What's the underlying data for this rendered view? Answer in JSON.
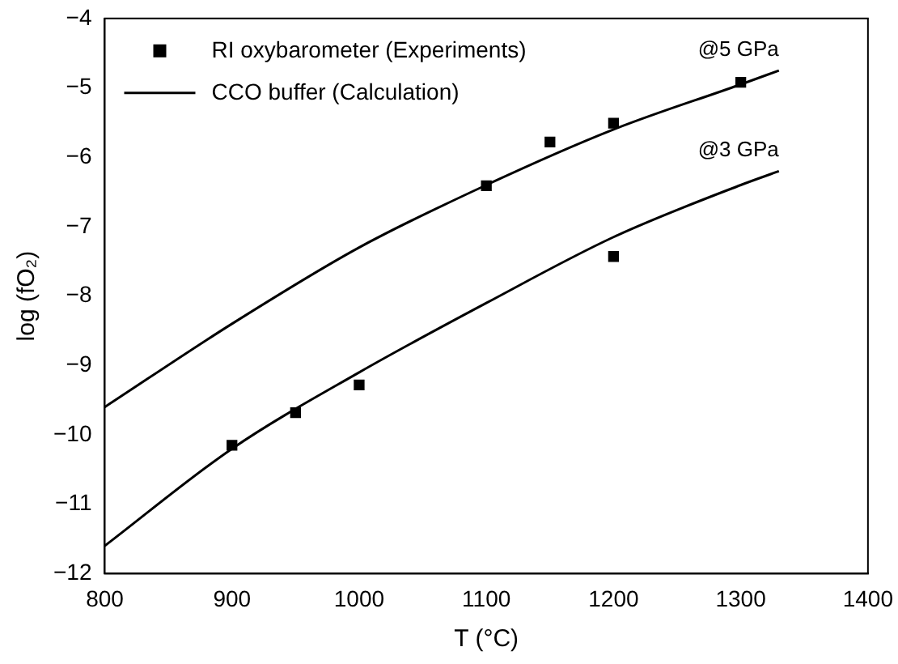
{
  "chart_data": {
    "type": "scatter",
    "xlabel": "T (°C)",
    "ylabel": "log (fO₂)",
    "xlim": [
      800,
      1400
    ],
    "xticks": [
      800,
      900,
      1000,
      1100,
      1200,
      1300,
      1400
    ],
    "ylim": [
      -12,
      -4
    ],
    "yticks": [
      {
        "value": -12,
        "label": "−12"
      },
      {
        "value": -11,
        "label": "−11"
      },
      {
        "value": -10,
        "label": "−10"
      },
      {
        "value": -9,
        "label": "−9"
      },
      {
        "value": -8,
        "label": "−8"
      },
      {
        "value": -7,
        "label": "−7"
      },
      {
        "value": -6,
        "label": "−6"
      },
      {
        "value": -5,
        "label": "−5"
      },
      {
        "value": -4,
        "label": "−4"
      }
    ],
    "grid": false,
    "legend": "top left",
    "series": [
      {
        "name": "RI oxybarometer (Experiments)",
        "marker": "square",
        "color": "#000000",
        "x": [
          900,
          950,
          1000,
          1100,
          1150,
          1200,
          1200,
          1300
        ],
        "values": [
          -10.15,
          -9.68,
          -9.28,
          -6.41,
          -5.78,
          -5.51,
          -7.43,
          -4.92
        ]
      },
      {
        "name": "CCO buffer (Calculation)",
        "type": "line",
        "marker": "none",
        "color": "#000000",
        "x": [
          800,
          900,
          1000,
          1100,
          1200,
          1300,
          1330
        ],
        "values": [
          -9.6,
          -8.4,
          -7.3,
          -6.4,
          -5.6,
          -4.95,
          -4.75
        ]
      },
      {
        "type": "line",
        "marker": "none",
        "color": "#000000",
        "x": [
          800,
          900,
          1000,
          1100,
          1200,
          1300,
          1330
        ],
        "values": [
          -11.6,
          -10.2,
          -9.1,
          -8.1,
          -7.15,
          -6.4,
          -6.2
        ]
      }
    ],
    "annotations": [
      {
        "text": "@5 GPa",
        "x": 1330,
        "y": -4.75
      },
      {
        "text": "@3 GPa",
        "x": 1330,
        "y": -6.2
      }
    ]
  }
}
